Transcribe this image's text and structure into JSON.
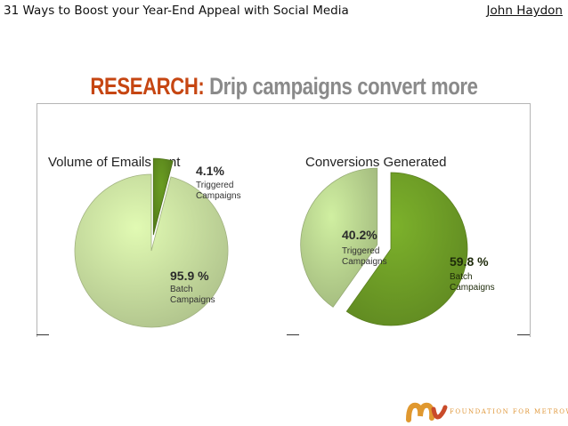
{
  "header": {
    "doc_title": "31 Ways to Boost your Year-End Appeal with Social Media",
    "author": "John Haydon"
  },
  "slide": {
    "headline_prefix": "RESEARCH:",
    "headline_rest": " Drip campaigns convert more"
  },
  "chart_data": [
    {
      "type": "pie",
      "title": "Volume of Emails sent",
      "slices": [
        {
          "label_value": "4.1%",
          "label_lines": [
            "Triggered",
            "Campaigns"
          ],
          "value": 4.1,
          "color": "#5f8c1e",
          "exploded": true
        },
        {
          "label_value": "95.9 %",
          "label_lines": [
            "Batch",
            "Campaigns"
          ],
          "value": 95.9,
          "color": "#c9dfa0",
          "exploded": false
        }
      ]
    },
    {
      "type": "pie",
      "title": "Conversions Generated",
      "slices": [
        {
          "label_value": "59.8 %",
          "label_lines": [
            "Batch",
            "Campaigns"
          ],
          "value": 59.8,
          "color": "#6f9e26",
          "exploded": false
        },
        {
          "label_value": "40.2%",
          "label_lines": [
            "Triggered",
            "Campaigns"
          ],
          "value": 40.2,
          "color": "#bad590",
          "exploded": true
        }
      ]
    }
  ],
  "footer": {
    "logo_text": "FOUNDATION FOR METROWEST",
    "logo_colors": [
      "#e0982f",
      "#c94b2a"
    ]
  }
}
